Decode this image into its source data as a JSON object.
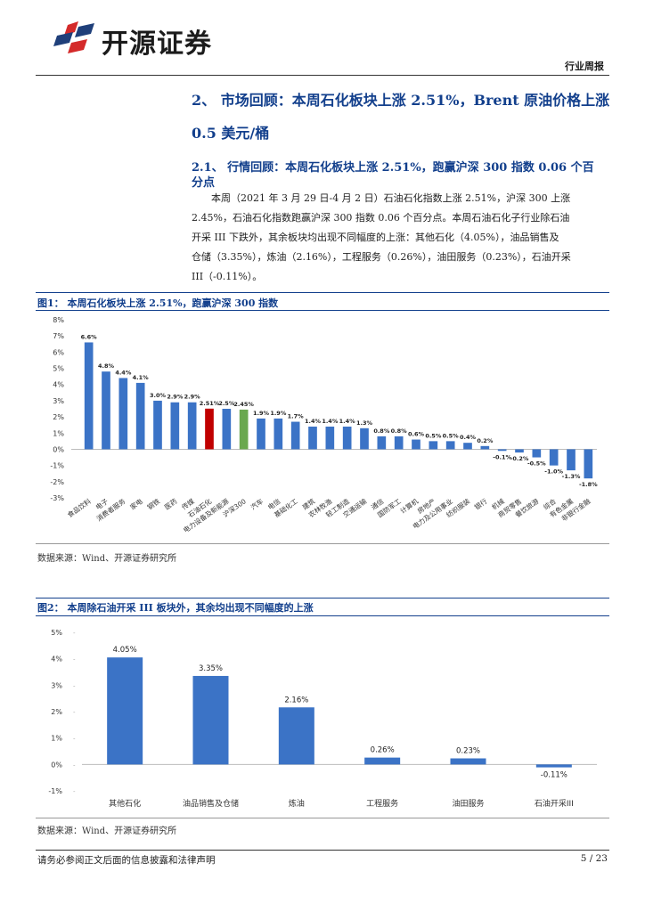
{
  "header": {
    "brand": "开源证券",
    "doc_type": "行业周报"
  },
  "section": {
    "heading_line1": "2、 市场回顾：本周石化板块上涨 2.51%，Brent 原油价格上涨",
    "heading_line2": "0.5 美元/桶",
    "sub_heading_line1": "2.1、 行情回顾：本周石化板块上涨 2.51%，跑赢沪深 300 指数 0.06 个百",
    "sub_heading_line2": "分点",
    "paragraph_lines": [
      "本周（2021 年 3 月 29 日-4 月 2 日）石油石化指数上涨 2.51%，沪深 300 上涨",
      "2.45%，石油石化指数跑赢沪深 300 指数 0.06 个百分点。本周石油石化子行业除石油",
      "开采 III 下跌外，其余板块均出现不同幅度的上涨：其他石化（4.05%），油品销售及",
      "仓储（3.35%），炼油（2.16%），工程服务（0.26%），油田服务（0.23%），石油开采",
      "III（-0.11%）。"
    ]
  },
  "figure1": {
    "title": "图1： 本周石化板块上涨 2.51%，跑赢沪深 300 指数",
    "source": "数据来源：Wind、开源证券研究所"
  },
  "figure2": {
    "title": "图2： 本周除石油开采 III 板块外，其余均出现不同幅度的上涨",
    "source": "数据来源：Wind、开源证券研究所"
  },
  "footer": {
    "disclaimer": "请务必参阅正文后面的信息披露和法律声明",
    "page": "5 / 23"
  },
  "colors": {
    "bar_blue": "#3b73c6",
    "highlight_red": "#c00000",
    "highlight_green": "#6aa84f",
    "brand_red": "#d42a2a",
    "heading_blue": "#123f8c"
  },
  "chart_data": [
    {
      "type": "bar",
      "categories": [
        "食品饮料",
        "电子",
        "消费者服务",
        "家电",
        "钢铁",
        "医药",
        "传媒",
        "石油石化",
        "电力设备及新能源",
        "沪深300",
        "汽车",
        "电信",
        "基础化工",
        "建筑",
        "农林牧渔",
        "轻工制造",
        "交通运输",
        "通信",
        "国防军工",
        "计算机",
        "房地产",
        "电力及公用事业",
        "纺织服装",
        "银行",
        "机械",
        "商贸零售",
        "餐饮旅游",
        "综合",
        "有色金属",
        "非银行金融"
      ],
      "values": [
        6.6,
        4.8,
        4.4,
        4.1,
        3.0,
        2.9,
        2.9,
        2.51,
        2.5,
        2.45,
        1.9,
        1.9,
        1.7,
        1.4,
        1.4,
        1.4,
        1.3,
        0.8,
        0.8,
        0.6,
        0.5,
        0.5,
        0.4,
        0.2,
        -0.1,
        -0.2,
        -0.5,
        -1.0,
        -1.3,
        -1.8
      ],
      "labels": [
        "6.6%",
        "4.8%",
        "4.4%",
        "4.1%",
        "3.0%",
        "2.9%",
        "2.9%",
        "2.51%",
        "2.5%",
        "2.45%",
        "1.9%",
        "1.9%",
        "1.7%",
        "1.4%",
        "1.4%",
        "1.4%",
        "1.3%",
        "0.8%",
        "0.8%",
        "0.6%",
        "0.5%",
        "0.5%",
        "0.4%",
        "0.2%",
        "-0.1%",
        "-0.2%",
        "-0.5%",
        "-1.0%",
        "-1.3%",
        "-1.8%"
      ],
      "highlight": {
        "石油石化": "#c00000",
        "沪深300": "#6aa84f"
      },
      "ylim": [
        -3,
        8
      ],
      "yticks": [
        "-3%",
        "-2%",
        "-1%",
        "0%",
        "1%",
        "2%",
        "3%",
        "4%",
        "5%",
        "6%",
        "7%",
        "8%"
      ],
      "grid": false
    },
    {
      "type": "bar",
      "categories": [
        "其他石化",
        "油品销售及仓储",
        "炼油",
        "工程服务",
        "油田服务",
        "石油开采III"
      ],
      "values": [
        4.05,
        3.35,
        2.16,
        0.26,
        0.23,
        -0.11
      ],
      "labels": [
        "4.05%",
        "3.35%",
        "2.16%",
        "0.26%",
        "0.23%",
        "-0.11%"
      ],
      "ylim": [
        -1,
        5
      ],
      "yticks": [
        "-1%",
        "0%",
        "1%",
        "2%",
        "3%",
        "4%",
        "5%"
      ],
      "grid": false
    }
  ]
}
